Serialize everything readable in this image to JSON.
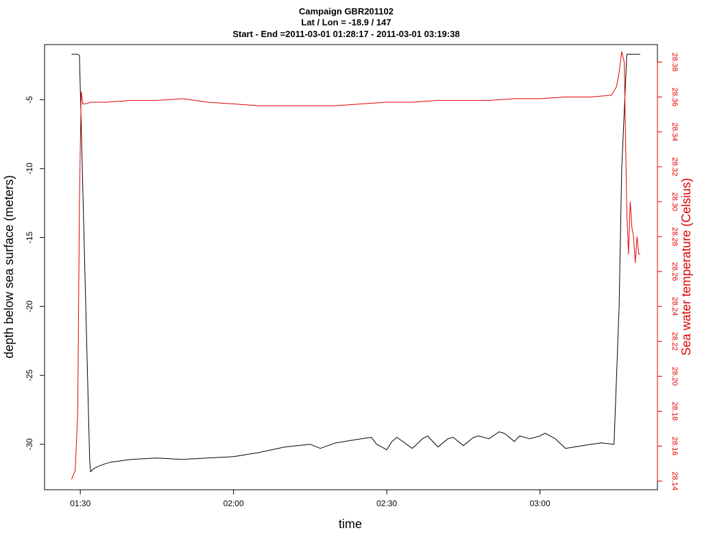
{
  "chart_data": {
    "type": "line",
    "title_lines": [
      "Campaign GBR201102",
      "Lat / Lon = -18.9 / 147",
      "Start - End =2011-03-01 01:28:17 - 2011-03-01 03:19:38"
    ],
    "xlabel": "time",
    "ylabel_left": "depth below sea surface (meters)",
    "ylabel_right": "Sea water temperature (Celsius)",
    "x_ticks": [
      "01:30",
      "02:00",
      "02:30",
      "03:00"
    ],
    "x_tick_values": [
      "01:30",
      "02:00",
      "02:30",
      "03:00"
    ],
    "xlim": [
      "01:23:00",
      "03:23:00"
    ],
    "ylim_left": [
      -33.3,
      -1.0
    ],
    "y_ticks_left": [
      -5,
      -10,
      -15,
      -20,
      -25,
      -30
    ],
    "ylim_right": [
      28.135,
      28.39
    ],
    "y_ticks_right": [
      28.14,
      28.16,
      28.18,
      28.2,
      28.22,
      28.24,
      28.26,
      28.28,
      28.3,
      28.32,
      28.34,
      28.36,
      28.38
    ],
    "grid": false,
    "colors": {
      "depth": "#000000",
      "temperature": "#e00000",
      "right_axis": "#e00000"
    },
    "series": [
      {
        "axis": "left",
        "color": "#000000",
        "x": [
          "01:28:17",
          "01:29:30",
          "01:29:50",
          "01:31:50",
          "01:32:00",
          "01:32:30",
          "01:33:30",
          "01:35:00",
          "01:36:00",
          "01:38:00",
          "01:40:00",
          "01:45:00",
          "01:50:00",
          "01:55:00",
          "02:00:00",
          "02:05:00",
          "02:07:30",
          "02:10:00",
          "02:15:00",
          "02:17:00",
          "02:20:00",
          "02:25:00",
          "02:27:00",
          "02:28:00",
          "02:29:00",
          "02:30:00",
          "02:31:00",
          "02:32:00",
          "02:35:00",
          "02:37:00",
          "02:38:00",
          "02:40:00",
          "02:42:00",
          "02:43:00",
          "02:45:00",
          "02:47:00",
          "02:48:00",
          "02:50:00",
          "02:52:00",
          "02:53:00",
          "02:55:00",
          "02:56:00",
          "02:58:00",
          "03:00:00",
          "03:01:00",
          "03:02:00",
          "03:03:00",
          "03:05:00",
          "03:10:00",
          "03:12:00",
          "03:14:30",
          "03:15:30",
          "03:16:00",
          "03:17:00",
          "03:18:00",
          "03:19:38"
        ],
        "y": [
          -1.7,
          -1.7,
          -1.8,
          -31.2,
          -32.0,
          -31.8,
          -31.6,
          -31.4,
          -31.3,
          -31.2,
          -31.1,
          -31.0,
          -31.1,
          -31.0,
          -30.9,
          -30.6,
          -30.4,
          -30.2,
          -30.0,
          -30.3,
          -29.9,
          -29.6,
          -29.5,
          -30.0,
          -30.2,
          -30.4,
          -29.8,
          -29.5,
          -30.3,
          -29.6,
          -29.4,
          -30.2,
          -29.6,
          -29.5,
          -30.1,
          -29.5,
          -29.4,
          -29.6,
          -29.1,
          -29.2,
          -29.8,
          -29.4,
          -29.6,
          -29.4,
          -29.2,
          -29.4,
          -29.6,
          -30.3,
          -30.0,
          -29.9,
          -30.0,
          -20.0,
          -10.0,
          -1.7,
          -1.7,
          -1.7
        ]
      },
      {
        "axis": "right",
        "color": "#e00000",
        "x": [
          "01:28:17",
          "01:29:00",
          "01:29:30",
          "01:29:50",
          "01:30:10",
          "01:30:30",
          "01:31:00",
          "01:32:00",
          "01:35:00",
          "01:40:00",
          "01:45:00",
          "01:50:00",
          "01:55:00",
          "02:00:00",
          "02:05:00",
          "02:10:00",
          "02:15:00",
          "02:20:00",
          "02:25:00",
          "02:30:00",
          "02:35:00",
          "02:40:00",
          "02:45:00",
          "02:50:00",
          "02:55:00",
          "03:00:00",
          "03:05:00",
          "03:10:00",
          "03:14:00",
          "03:15:00",
          "03:15:30",
          "03:16:00",
          "03:16:30",
          "03:17:00",
          "03:17:20",
          "03:17:40",
          "03:18:00",
          "03:18:20",
          "03:18:40",
          "03:19:00",
          "03:19:20",
          "03:19:38"
        ],
        "y": [
          28.141,
          28.146,
          28.18,
          28.3,
          28.363,
          28.356,
          28.356,
          28.357,
          28.357,
          28.358,
          28.358,
          28.359,
          28.357,
          28.356,
          28.355,
          28.355,
          28.355,
          28.355,
          28.356,
          28.357,
          28.357,
          28.358,
          28.358,
          28.358,
          28.359,
          28.359,
          28.36,
          28.36,
          28.361,
          28.366,
          28.374,
          28.386,
          28.38,
          28.295,
          28.27,
          28.3,
          28.285,
          28.28,
          28.265,
          28.28,
          28.27,
          28.27
        ]
      }
    ]
  }
}
